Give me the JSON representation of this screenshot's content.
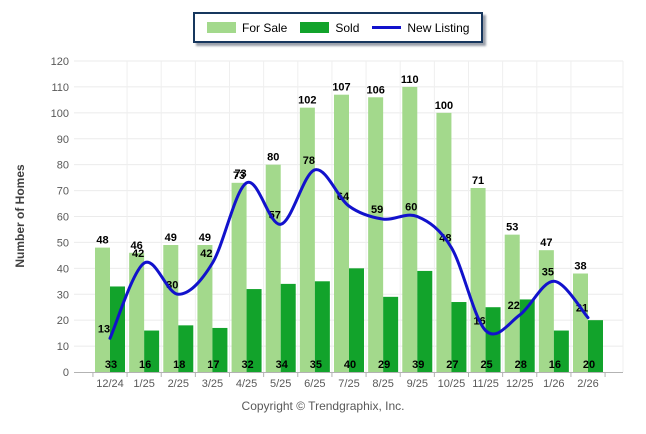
{
  "chart_data": {
    "type": "bar",
    "subtype": "grouped bars with smooth overlay line",
    "title": "",
    "categories": [
      "12/24",
      "1/25",
      "2/25",
      "3/25",
      "4/25",
      "5/25",
      "6/25",
      "7/25",
      "8/25",
      "9/25",
      "10/25",
      "11/25",
      "12/25",
      "1/26",
      "2/26"
    ],
    "series": [
      {
        "name": "For Sale",
        "render": "bar",
        "color": "#A3D98C",
        "values": [
          48,
          46,
          49,
          49,
          73,
          80,
          102,
          107,
          106,
          110,
          100,
          71,
          53,
          47,
          38
        ]
      },
      {
        "name": "Sold",
        "render": "bar",
        "color": "#12A32B",
        "values": [
          33,
          16,
          18,
          17,
          32,
          34,
          35,
          40,
          29,
          39,
          27,
          25,
          28,
          16,
          20
        ]
      },
      {
        "name": "New Listing",
        "render": "line",
        "color": "#1212CC",
        "values": [
          13,
          42,
          30,
          42,
          73,
          57,
          78,
          64,
          59,
          60,
          48,
          16,
          22,
          35,
          21
        ]
      }
    ],
    "xlabel": "",
    "ylabel": "Number of Homes",
    "ylim": [
      0,
      120
    ],
    "yticks": [
      0,
      10,
      20,
      30,
      40,
      50,
      60,
      70,
      80,
      90,
      100,
      110,
      120
    ],
    "grid": true,
    "value_labels": true,
    "legend_position": "top-center"
  },
  "footer": {
    "copyright": "Copyright © Trendgraphix, Inc."
  },
  "colors": {
    "background": "#ffffff",
    "h_gridline": "#ebebeb",
    "v_gridline": "#efefef",
    "axis": "#b3b3b3",
    "tick_label": "#595959",
    "axis_title": "#404040",
    "value_label": "#000000",
    "legend_border": "#17375E"
  }
}
